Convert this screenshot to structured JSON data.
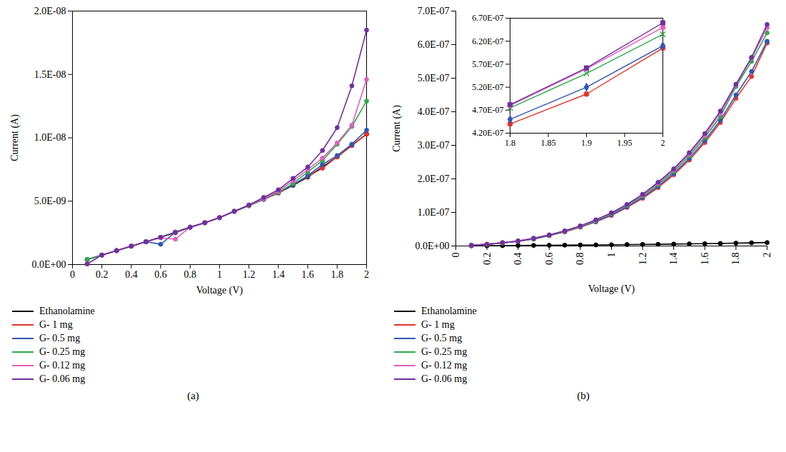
{
  "chart_data": [
    {
      "type": "line",
      "title": "(a)",
      "xlabel": "Voltage (V)",
      "ylabel": "Current (A)",
      "x": [
        0.1,
        0.2,
        0.3,
        0.4,
        0.5,
        0.6,
        0.7,
        0.8,
        0.9,
        1.0,
        1.1,
        1.2,
        1.3,
        1.4,
        1.5,
        1.6,
        1.7,
        1.8,
        1.9,
        2.0
      ],
      "xlim": [
        0,
        2
      ],
      "xticks": [
        0,
        0.2,
        0.4,
        0.6,
        0.8,
        1,
        1.2,
        1.4,
        1.6,
        1.8,
        2
      ],
      "ylim": [
        0,
        2e-08
      ],
      "yticks": [
        {
          "value": 0,
          "label": "0.0E+00"
        },
        {
          "value": 5e-09,
          "label": "5.0E-09"
        },
        {
          "value": 1e-08,
          "label": "1.0E-08"
        },
        {
          "value": 1.5e-08,
          "label": "1.5E-08"
        },
        {
          "value": 2e-08,
          "label": "2.0E-08"
        }
      ],
      "grid": false,
      "legend": "bottom",
      "marker": "circle",
      "series": [
        {
          "name": "Ethanolamine",
          "color": "#000000",
          "values": [
            4e-10,
            7.5e-10,
            1.1e-09,
            1.45e-09,
            1.8e-09,
            2.15e-09,
            2.55e-09,
            2.95e-09,
            3.3e-09,
            3.7e-09,
            4.2e-09,
            4.65e-09,
            5.15e-09,
            5.65e-09,
            6.25e-09,
            6.9e-09,
            7.7e-09,
            8.5e-09,
            9.4e-09,
            1.03e-08
          ]
        },
        {
          "name": "G- 1 mg",
          "color": "#e8332a",
          "values": [
            4e-10,
            7.5e-10,
            1.1e-09,
            1.45e-09,
            1.8e-09,
            2.15e-09,
            2.5e-09,
            2.95e-09,
            3.3e-09,
            3.7e-09,
            4.2e-09,
            4.65e-09,
            5.15e-09,
            5.65e-09,
            6.3e-09,
            6.95e-09,
            7.6e-09,
            8.5e-09,
            9.4e-09,
            1.03e-08
          ]
        },
        {
          "name": "G- 0.5 mg",
          "color": "#2f55b5",
          "values": [
            4e-10,
            7.5e-10,
            1.1e-09,
            1.45e-09,
            1.8e-09,
            1.6e-09,
            2.55e-09,
            2.95e-09,
            3.3e-09,
            3.7e-09,
            4.2e-09,
            4.65e-09,
            5.15e-09,
            5.7e-09,
            6.3e-09,
            7e-09,
            7.9e-09,
            8.6e-09,
            9.5e-09,
            1.06e-08
          ]
        },
        {
          "name": "G- 0.25 mg",
          "color": "#2eaa48",
          "values": [
            4e-10,
            7.5e-10,
            1.1e-09,
            1.45e-09,
            1.8e-09,
            2.15e-09,
            2.55e-09,
            2.95e-09,
            3.3e-09,
            3.7e-09,
            4.2e-09,
            4.65e-09,
            5.2e-09,
            5.7e-09,
            6.4e-09,
            7.3e-09,
            8.2e-09,
            9.5e-09,
            1.09e-08,
            1.29e-08
          ]
        },
        {
          "name": "G- 0.12 mg",
          "color": "#e060c0",
          "values": [
            5e-11,
            7.5e-10,
            1.1e-09,
            1.45e-09,
            1.8e-09,
            2.1e-09,
            2e-09,
            2.95e-09,
            3.3e-09,
            3.7e-09,
            4.2e-09,
            4.7e-09,
            5.2e-09,
            5.8e-09,
            6.6e-09,
            7.5e-09,
            8.4e-09,
            9.6e-09,
            1.1e-08,
            1.46e-08
          ]
        },
        {
          "name": "G- 0.06 mg",
          "color": "#7030a0",
          "values": [
            5e-11,
            7.5e-10,
            1.1e-09,
            1.45e-09,
            1.8e-09,
            2.15e-09,
            2.55e-09,
            2.95e-09,
            3.3e-09,
            3.7e-09,
            4.2e-09,
            4.7e-09,
            5.3e-09,
            5.9e-09,
            6.8e-09,
            7.7e-09,
            9e-09,
            1.08e-08,
            1.41e-08,
            1.85e-08
          ]
        }
      ]
    },
    {
      "type": "line",
      "title": "(b)",
      "xlabel": "Voltage (V)",
      "ylabel": "Current (A)",
      "x": [
        0.1,
        0.2,
        0.3,
        0.4,
        0.5,
        0.6,
        0.7,
        0.8,
        0.9,
        1.0,
        1.1,
        1.2,
        1.3,
        1.4,
        1.5,
        1.6,
        1.7,
        1.8,
        1.9,
        2.0
      ],
      "xlim": [
        0,
        2
      ],
      "xticks": [
        0,
        0.2,
        0.4,
        0.6,
        0.8,
        1,
        1.2,
        1.4,
        1.6,
        1.8,
        2
      ],
      "ylim": [
        0,
        7e-07
      ],
      "yticks": [
        {
          "value": 0,
          "label": "0.0E+00"
        },
        {
          "value": 1e-07,
          "label": "1.0E-07"
        },
        {
          "value": 2e-07,
          "label": "2.0E-07"
        },
        {
          "value": 3e-07,
          "label": "3.0E-07"
        },
        {
          "value": 4e-07,
          "label": "4.0E-07"
        },
        {
          "value": 5e-07,
          "label": "5.0E-07"
        },
        {
          "value": 6e-07,
          "label": "6.0E-07"
        },
        {
          "value": 7e-07,
          "label": "7.0E-07"
        }
      ],
      "grid": false,
      "legend": "bottom",
      "marker": "circle",
      "series": [
        {
          "name": "Ethanolamine",
          "color": "#000000",
          "values": [
            4e-10,
            7.5e-10,
            1.1e-09,
            1.45e-09,
            1.8e-09,
            2.15e-09,
            2.55e-09,
            2.95e-09,
            3.3e-09,
            3.7e-09,
            4.2e-09,
            4.65e-09,
            5.15e-09,
            5.65e-09,
            6.25e-09,
            6.9e-09,
            7.7e-09,
            8.5e-09,
            9.4e-09,
            1.03e-08
          ]
        },
        {
          "name": "G- 1 mg",
          "color": "#e8332a",
          "values": [
            2e-09,
            5e-09,
            9e-09,
            1.4e-08,
            2.1e-08,
            3.1e-08,
            4.2e-08,
            5.6e-08,
            7.2e-08,
            9.1e-08,
            1.15e-07,
            1.42e-07,
            1.74e-07,
            2.12e-07,
            2.56e-07,
            3.08e-07,
            3.68e-07,
            4.4e-07,
            5.05e-07,
            6.05e-07
          ]
        },
        {
          "name": "G- 0.5 mg",
          "color": "#2f55b5",
          "values": [
            2e-09,
            5e-09,
            9e-09,
            1.4e-08,
            2.1e-08,
            3.1e-08,
            4.3e-08,
            5.7e-08,
            7.3e-08,
            9.3e-08,
            1.17e-07,
            1.45e-07,
            1.78e-07,
            2.16e-07,
            2.61e-07,
            3.14e-07,
            3.75e-07,
            4.5e-07,
            5.2e-07,
            6.1e-07
          ]
        },
        {
          "name": "G- 0.25 mg",
          "color": "#2eaa48",
          "values": [
            2e-09,
            5e-09,
            9e-09,
            1.5e-08,
            2.2e-08,
            3.2e-08,
            4.4e-08,
            5.8e-08,
            7.5e-08,
            9.6e-08,
            1.21e-07,
            1.49e-07,
            1.83e-07,
            2.22e-07,
            2.68e-07,
            3.23e-07,
            3.86e-07,
            4.75e-07,
            5.5e-07,
            6.35e-07
          ]
        },
        {
          "name": "G- 0.12 mg",
          "color": "#e060c0",
          "values": [
            2e-09,
            5e-09,
            1e-08,
            1.5e-08,
            2.3e-08,
            3.3e-08,
            4.5e-08,
            5.9e-08,
            7.7e-08,
            9.8e-08,
            1.23e-07,
            1.52e-07,
            1.87e-07,
            2.27e-07,
            2.74e-07,
            3.3e-07,
            3.95e-07,
            4.8e-07,
            5.6e-07,
            6.5e-07
          ]
        },
        {
          "name": "G- 0.06 mg",
          "color": "#7030a0",
          "values": [
            2e-09,
            5e-09,
            1e-08,
            1.5e-08,
            2.3e-08,
            3.3e-08,
            4.5e-08,
            6e-08,
            7.8e-08,
            9.9e-08,
            1.24e-07,
            1.54e-07,
            1.9e-07,
            2.3e-07,
            2.78e-07,
            3.35e-07,
            4.02e-07,
            4.82e-07,
            5.62e-07,
            6.6e-07
          ]
        }
      ]
    },
    {
      "type": "line",
      "x": [
        1.8,
        1.9,
        2.0
      ],
      "xlim": [
        1.8,
        2
      ],
      "xticks": [
        1.8,
        1.85,
        1.9,
        1.95,
        2
      ],
      "ylim": [
        4.2e-07,
        6.7e-07
      ],
      "yticks": [
        {
          "value": 4.2e-07,
          "label": "4.20E-07"
        },
        {
          "value": 4.7e-07,
          "label": "4.70E-07"
        },
        {
          "value": 5.2e-07,
          "label": "5.20E-07"
        },
        {
          "value": 5.7e-07,
          "label": "5.70E-07"
        },
        {
          "value": 6.2e-07,
          "label": "6.20E-07"
        },
        {
          "value": 6.7e-07,
          "label": "6.70E-07"
        }
      ],
      "grid": false,
      "series": [
        {
          "name": "G- 1 mg",
          "color": "#e8332a",
          "marker": "circle",
          "values": [
            4.4e-07,
            5.05e-07,
            6.05e-07
          ]
        },
        {
          "name": "G- 0.5 mg",
          "color": "#2f55b5",
          "marker": "diamond",
          "values": [
            4.5e-07,
            5.2e-07,
            6.1e-07
          ]
        },
        {
          "name": "G- 0.25 mg",
          "color": "#2eaa48",
          "marker": "times",
          "values": [
            4.75e-07,
            5.5e-07,
            6.35e-07
          ]
        },
        {
          "name": "G- 0.12 mg",
          "color": "#e060c0",
          "marker": "circle",
          "values": [
            4.8e-07,
            5.6e-07,
            6.5e-07
          ]
        },
        {
          "name": "G- 0.06 mg",
          "color": "#7030a0",
          "marker": "square",
          "values": [
            4.82e-07,
            5.62e-07,
            6.6e-07
          ]
        }
      ]
    }
  ]
}
